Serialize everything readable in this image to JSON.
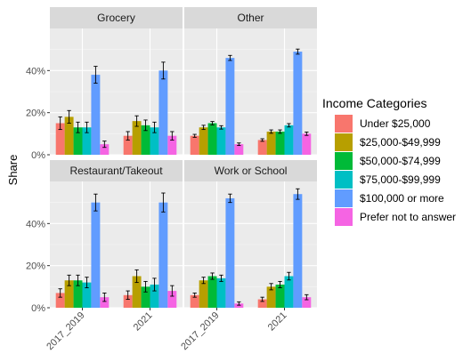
{
  "chart_data": {
    "type": "bar",
    "facets": [
      "Grocery",
      "Other",
      "Restaurant/Takeout",
      "Work or School"
    ],
    "categories": [
      "2017_2019",
      "2021"
    ],
    "ylabel": "Share",
    "xlabel": "",
    "ylim": [
      0,
      0.6
    ],
    "yticks": [
      0,
      0.2,
      0.4
    ],
    "ytick_labels": [
      "0%",
      "20%",
      "40%"
    ],
    "legend_title": "Income Categories",
    "legend_position": "right",
    "series": [
      {
        "name": "Under $25,000",
        "color": "#F8766D"
      },
      {
        "name": "$25,000-$49,999",
        "color": "#B79F00"
      },
      {
        "name": "$50,000-$74,999",
        "color": "#00BA38"
      },
      {
        "name": "$75,000-$99,999",
        "color": "#00BFC4"
      },
      {
        "name": "$100,000 or more",
        "color": "#619CFF"
      },
      {
        "name": "Prefer not to answer",
        "color": "#F564E3"
      }
    ],
    "panels": [
      {
        "facet": "Grocery",
        "values": [
          [
            0.15,
            0.18,
            0.13,
            0.13,
            0.38,
            0.05
          ],
          [
            0.09,
            0.16,
            0.14,
            0.13,
            0.4,
            0.09
          ]
        ],
        "errors": [
          [
            0.03,
            0.03,
            0.025,
            0.025,
            0.04,
            0.015
          ],
          [
            0.02,
            0.025,
            0.025,
            0.025,
            0.04,
            0.02
          ]
        ]
      },
      {
        "facet": "Other",
        "values": [
          [
            0.09,
            0.13,
            0.15,
            0.13,
            0.46,
            0.05
          ],
          [
            0.07,
            0.11,
            0.11,
            0.14,
            0.49,
            0.1
          ]
        ],
        "errors": [
          [
            0.007,
            0.01,
            0.008,
            0.008,
            0.012,
            0.006
          ],
          [
            0.006,
            0.008,
            0.008,
            0.008,
            0.012,
            0.008
          ]
        ]
      },
      {
        "facet": "Restaurant/Takeout",
        "values": [
          [
            0.07,
            0.13,
            0.13,
            0.12,
            0.5,
            0.05
          ],
          [
            0.06,
            0.15,
            0.1,
            0.11,
            0.5,
            0.08
          ]
        ],
        "errors": [
          [
            0.02,
            0.025,
            0.025,
            0.025,
            0.04,
            0.02
          ],
          [
            0.02,
            0.03,
            0.025,
            0.03,
            0.045,
            0.025
          ]
        ]
      },
      {
        "facet": "Work or School",
        "values": [
          [
            0.06,
            0.13,
            0.15,
            0.14,
            0.52,
            0.02
          ],
          [
            0.04,
            0.1,
            0.11,
            0.15,
            0.54,
            0.05
          ]
        ],
        "errors": [
          [
            0.01,
            0.015,
            0.015,
            0.015,
            0.02,
            0.008
          ],
          [
            0.01,
            0.015,
            0.015,
            0.018,
            0.025,
            0.012
          ]
        ]
      }
    ]
  }
}
